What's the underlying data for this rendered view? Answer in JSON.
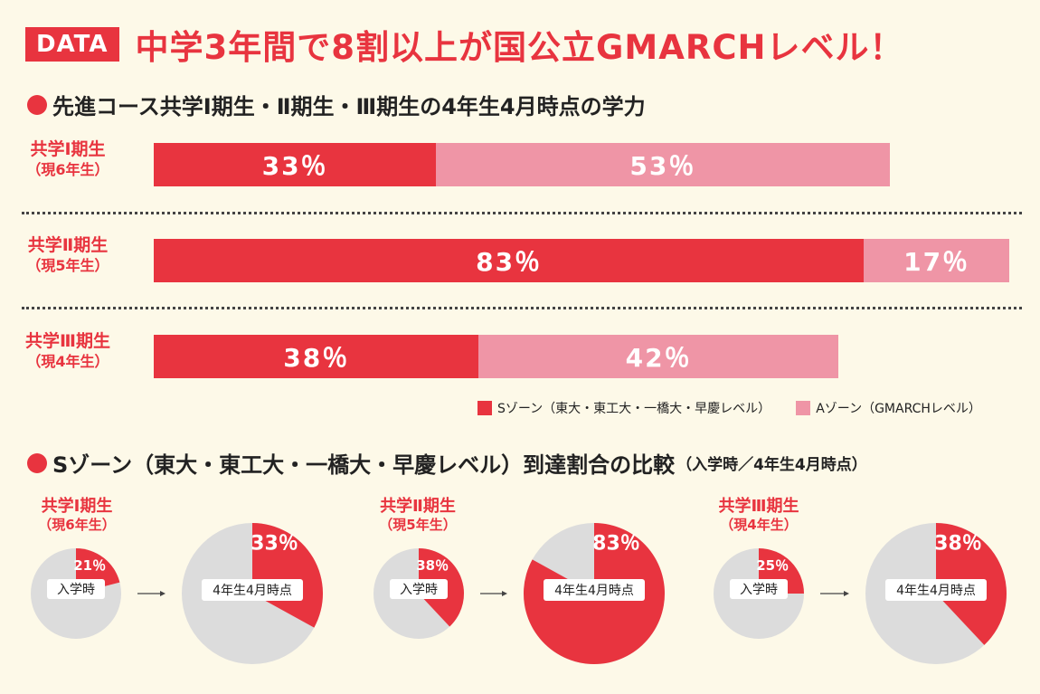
{
  "header": {
    "badge": "DATA",
    "title": "中学3年間で8割以上が国公立GMARCHレベル！"
  },
  "section1": {
    "title": "先進コース共学Ⅰ期生・Ⅱ期生・Ⅲ期生の4年生4月時点の学力"
  },
  "section2": {
    "title": "Sゾーン（東大・東工大・一橋大・早慶レベル）到達割合の比較",
    "subtitle": "（入学時／4年生4月時点）"
  },
  "legend": {
    "s_label": "Sゾーン（東大・東工大・一橋大・早慶レベル）",
    "a_label": "Aゾーン（GMARCHレベル）"
  },
  "colors": {
    "s_zone": "#e8343f",
    "a_zone": "#ef95a6",
    "pie_rest": "#dcdcdc",
    "background": "#fdf9e8"
  },
  "chart_data": [
    {
      "type": "bar",
      "orientation": "horizontal",
      "stacked": true,
      "categories": [
        {
          "name": "共学Ⅰ期生",
          "sub": "（現6年生）"
        },
        {
          "name": "共学Ⅱ期生",
          "sub": "（現5年生）"
        },
        {
          "name": "共学Ⅲ期生",
          "sub": "（現4年生）"
        }
      ],
      "series": [
        {
          "name": "Sゾーン（東大・東工大・一橋大・早慶レベル）",
          "values": [
            33,
            83,
            38
          ],
          "labels": [
            "33％",
            "83％",
            "38％"
          ]
        },
        {
          "name": "Aゾーン（GMARCHレベル）",
          "values": [
            53,
            17,
            42
          ],
          "labels": [
            "53％",
            "17％",
            "42％"
          ]
        }
      ],
      "xlim": [
        0,
        100
      ],
      "legend": "bottom-right"
    },
    {
      "type": "pie",
      "groups": [
        {
          "name": "共学Ⅰ期生",
          "sub": "（現6年生）",
          "entry": {
            "label": "入学時",
            "value": 21,
            "text": "21％"
          },
          "current": {
            "label": "4年生4月時点",
            "value": 33,
            "text": "33％"
          }
        },
        {
          "name": "共学Ⅱ期生",
          "sub": "（現5年生）",
          "entry": {
            "label": "入学時",
            "value": 38,
            "text": "38％"
          },
          "current": {
            "label": "4年生4月時点",
            "value": 83,
            "text": "83％"
          }
        },
        {
          "name": "共学Ⅲ期生",
          "sub": "（現4年生）",
          "entry": {
            "label": "入学時",
            "value": 25,
            "text": "25％"
          },
          "current": {
            "label": "4年生4月時点",
            "value": 38,
            "text": "38％"
          }
        }
      ]
    }
  ]
}
